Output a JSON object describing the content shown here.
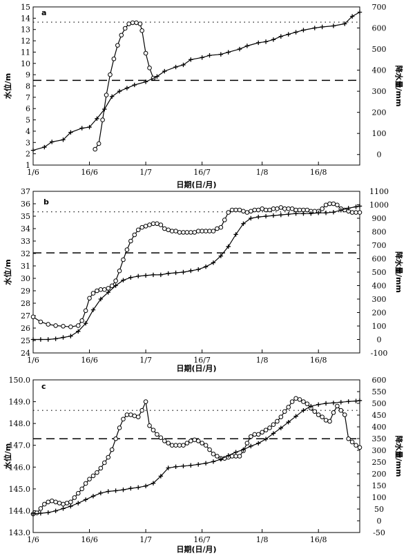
{
  "chart_data": [
    {
      "type": "line",
      "panel_label": "a",
      "xlabel": "日期(日/月)",
      "ylabel_left": "水位/m",
      "ylabel_right": "降水量/mm",
      "x_domain": [
        0,
        87
      ],
      "xticks": [
        {
          "x": 0,
          "label": "1/6"
        },
        {
          "x": 15,
          "label": "16/6"
        },
        {
          "x": 30,
          "label": "1/7"
        },
        {
          "x": 45,
          "label": "16/7"
        },
        {
          "x": 61,
          "label": "1/8"
        },
        {
          "x": 76,
          "label": "16/8"
        }
      ],
      "ylim_left": [
        1,
        15
      ],
      "yticks_left": [
        1,
        2,
        3,
        4,
        5,
        6,
        7,
        8,
        9,
        10,
        11,
        12,
        13,
        14,
        15
      ],
      "ylim_right": [
        -50,
        700
      ],
      "yticks_right": [
        0,
        100,
        200,
        300,
        400,
        500,
        600,
        700
      ],
      "hlines": [
        {
          "y": 13.65,
          "style": "dotted"
        },
        {
          "y": 8.5,
          "style": "dashed"
        }
      ],
      "series": [
        {
          "marker": "circle",
          "axis": "left",
          "x": [
            16.5,
            17.5,
            18.5,
            19.5,
            20.5,
            21.5,
            22.5,
            23.5,
            24.5,
            25.5,
            26.5,
            27.5,
            28.5,
            29,
            30,
            31,
            32
          ],
          "y": [
            2.4,
            2.9,
            5.0,
            7.2,
            9.0,
            10.4,
            11.6,
            12.5,
            13.1,
            13.5,
            13.6,
            13.6,
            13.5,
            12.9,
            10.9,
            9.6,
            8.7
          ]
        },
        {
          "marker": "plus",
          "axis": "right",
          "x": [
            0,
            3,
            5,
            8,
            10,
            13,
            15,
            17,
            19,
            21,
            23,
            25,
            27,
            30,
            33,
            35,
            38,
            40,
            42,
            45,
            47,
            50,
            52,
            55,
            57,
            60,
            62,
            64,
            66,
            68,
            70,
            72,
            75,
            77,
            80,
            83,
            85,
            87
          ],
          "y": [
            20,
            35,
            60,
            70,
            105,
            125,
            130,
            170,
            215,
            275,
            300,
            315,
            330,
            345,
            370,
            395,
            415,
            425,
            450,
            460,
            470,
            475,
            485,
            500,
            515,
            530,
            535,
            545,
            560,
            570,
            580,
            590,
            600,
            605,
            610,
            620,
            655,
            675
          ]
        }
      ]
    },
    {
      "type": "line",
      "panel_label": "b",
      "xlabel": "日期(日/月)",
      "ylabel_left": "水位/m",
      "ylabel_right": "降水量/mm",
      "x_domain": [
        0,
        87
      ],
      "xticks": [
        {
          "x": 0,
          "label": "1/6"
        },
        {
          "x": 15,
          "label": "16/6"
        },
        {
          "x": 30,
          "label": "1/7"
        },
        {
          "x": 45,
          "label": "16/7"
        },
        {
          "x": 61,
          "label": "1/8"
        },
        {
          "x": 76,
          "label": "16/8"
        }
      ],
      "ylim_left": [
        24,
        37
      ],
      "yticks_left": [
        24,
        25,
        26,
        27,
        28,
        29,
        30,
        31,
        32,
        33,
        34,
        35,
        36,
        37
      ],
      "ylim_right": [
        -100,
        1100
      ],
      "yticks_right": [
        -100,
        0,
        100,
        200,
        300,
        400,
        500,
        600,
        700,
        800,
        900,
        1000,
        1100
      ],
      "hlines": [
        {
          "y": 35.35,
          "style": "dotted"
        },
        {
          "y": 32.05,
          "style": "dashed"
        }
      ],
      "series": [
        {
          "marker": "circle",
          "axis": "left",
          "x": [
            0,
            2,
            4,
            6,
            8,
            10,
            12,
            13,
            14,
            15,
            16,
            17,
            18,
            19,
            20,
            21,
            22,
            23,
            24,
            25,
            26,
            27,
            28,
            29,
            30,
            31,
            32,
            33,
            34,
            35,
            36,
            37,
            38,
            39,
            40,
            41,
            42,
            43,
            44,
            45,
            46,
            47,
            48,
            49,
            50,
            51,
            52,
            53,
            54,
            55,
            56,
            57,
            58,
            59,
            60,
            61,
            62,
            63,
            64,
            65,
            66,
            67,
            68,
            69,
            70,
            71,
            72,
            73,
            74,
            75,
            76,
            77,
            78,
            79,
            80,
            81,
            82,
            83,
            84,
            85,
            86,
            87
          ],
          "y": [
            26.9,
            26.5,
            26.3,
            26.2,
            26.15,
            26.1,
            26.2,
            26.6,
            27.4,
            28.4,
            28.8,
            29.0,
            29.1,
            29.1,
            29.2,
            29.4,
            29.8,
            30.6,
            31.5,
            32.3,
            33.0,
            33.5,
            33.9,
            34.1,
            34.2,
            34.3,
            34.4,
            34.4,
            34.3,
            34.0,
            33.9,
            33.8,
            33.8,
            33.7,
            33.7,
            33.7,
            33.7,
            33.7,
            33.8,
            33.8,
            33.8,
            33.8,
            33.8,
            34.0,
            34.1,
            34.7,
            35.3,
            35.5,
            35.5,
            35.5,
            35.4,
            35.3,
            35.4,
            35.5,
            35.5,
            35.6,
            35.5,
            35.5,
            35.6,
            35.6,
            35.7,
            35.6,
            35.6,
            35.6,
            35.5,
            35.5,
            35.5,
            35.5,
            35.4,
            35.4,
            35.4,
            35.6,
            35.9,
            36.0,
            36.0,
            35.9,
            35.6,
            35.5,
            35.4,
            35.3,
            35.3,
            35.3
          ]
        },
        {
          "marker": "plus",
          "axis": "right",
          "x": [
            0,
            2,
            4,
            6,
            8,
            10,
            12,
            14,
            16,
            18,
            20,
            22,
            24,
            26,
            28,
            30,
            32,
            34,
            36,
            38,
            40,
            42,
            44,
            46,
            48,
            50,
            52,
            54,
            56,
            58,
            60,
            62,
            64,
            66,
            68,
            70,
            72,
            74,
            76,
            78,
            80,
            82,
            84,
            86,
            87
          ],
          "y": [
            0,
            0,
            0,
            5,
            15,
            25,
            60,
            120,
            220,
            300,
            350,
            400,
            440,
            460,
            470,
            475,
            480,
            480,
            490,
            495,
            500,
            510,
            520,
            540,
            570,
            620,
            690,
            780,
            860,
            900,
            910,
            915,
            920,
            925,
            930,
            935,
            935,
            935,
            940,
            940,
            945,
            960,
            975,
            985,
            990
          ]
        }
      ]
    },
    {
      "type": "line",
      "panel_label": "c",
      "xlabel": "日期(日/月)",
      "ylabel_left": "水位/m",
      "ylabel_right": "降水量/mm",
      "x_domain": [
        0,
        87
      ],
      "xticks": [
        {
          "x": 0,
          "label": "1/6"
        },
        {
          "x": 15,
          "label": "16/6"
        },
        {
          "x": 30,
          "label": "1/7"
        },
        {
          "x": 45,
          "label": "16/7"
        },
        {
          "x": 61,
          "label": "1/8"
        },
        {
          "x": 76,
          "label": "16/8"
        }
      ],
      "ylim_left": [
        143.0,
        150.0
      ],
      "yticks_left": [
        "143.0",
        "144.0",
        "145.0",
        "146.0",
        "147.0",
        "148.0",
        "149.0",
        "150.0"
      ],
      "ylim_right": [
        -50,
        600
      ],
      "yticks_right": [
        -50,
        0,
        50,
        100,
        150,
        200,
        250,
        300,
        350,
        400,
        450,
        500,
        550,
        600
      ],
      "hlines": [
        {
          "y": 148.6,
          "style": "dotted"
        },
        {
          "y": 147.3,
          "style": "dashed"
        }
      ],
      "series": [
        {
          "marker": "circle",
          "axis": "left",
          "x": [
            0,
            1,
            2,
            3,
            4,
            5,
            6,
            7,
            8,
            9,
            10,
            11,
            12,
            13,
            14,
            15,
            16,
            17,
            18,
            19,
            20,
            21,
            22,
            23,
            24,
            25,
            26,
            27,
            28,
            29,
            30,
            31,
            32,
            33,
            34,
            35,
            36,
            37,
            38,
            39,
            40,
            41,
            42,
            43,
            44,
            45,
            46,
            47,
            48,
            49,
            50,
            51,
            52,
            53,
            54,
            55,
            56,
            57,
            58,
            59,
            60,
            61,
            62,
            63,
            64,
            65,
            66,
            67,
            68,
            69,
            70,
            71,
            72,
            73,
            74,
            75,
            76,
            77,
            78,
            79,
            80,
            81,
            82,
            83,
            84,
            85,
            86,
            87
          ],
          "y": [
            143.85,
            143.9,
            144.1,
            144.3,
            144.4,
            144.45,
            144.4,
            144.35,
            144.3,
            144.35,
            144.4,
            144.6,
            144.8,
            145.0,
            145.25,
            145.45,
            145.6,
            145.75,
            145.95,
            146.2,
            146.45,
            146.8,
            147.3,
            147.8,
            148.2,
            148.4,
            148.4,
            148.35,
            148.3,
            148.6,
            149.0,
            147.9,
            147.7,
            147.5,
            147.35,
            147.2,
            147.1,
            147.0,
            147.0,
            147.0,
            147.0,
            147.1,
            147.2,
            147.25,
            147.2,
            147.1,
            147.0,
            146.8,
            146.6,
            146.5,
            146.4,
            146.4,
            146.45,
            146.5,
            146.5,
            146.5,
            146.75,
            147.1,
            147.4,
            147.5,
            147.5,
            147.6,
            147.7,
            147.8,
            147.95,
            148.1,
            148.3,
            148.55,
            148.75,
            149.0,
            149.15,
            149.1,
            149.0,
            148.9,
            148.7,
            148.55,
            148.4,
            148.3,
            148.15,
            148.1,
            148.5,
            148.8,
            148.6,
            148.4,
            147.3,
            147.15,
            147.0,
            146.9
          ]
        },
        {
          "marker": "plus",
          "axis": "right",
          "x": [
            0,
            2,
            4,
            6,
            8,
            10,
            12,
            14,
            16,
            18,
            20,
            22,
            24,
            26,
            28,
            30,
            32,
            34,
            36,
            38,
            40,
            42,
            44,
            46,
            48,
            50,
            52,
            54,
            56,
            58,
            60,
            62,
            64,
            66,
            68,
            70,
            72,
            74,
            76,
            78,
            80,
            82,
            84,
            86,
            87
          ],
          "y": [
            30,
            32,
            35,
            42,
            52,
            62,
            75,
            90,
            105,
            118,
            125,
            128,
            132,
            138,
            142,
            148,
            160,
            190,
            225,
            230,
            233,
            236,
            240,
            245,
            252,
            262,
            278,
            292,
            303,
            318,
            330,
            348,
            372,
            395,
            420,
            445,
            470,
            488,
            495,
            500,
            502,
            505,
            508,
            510,
            512
          ]
        }
      ]
    }
  ]
}
